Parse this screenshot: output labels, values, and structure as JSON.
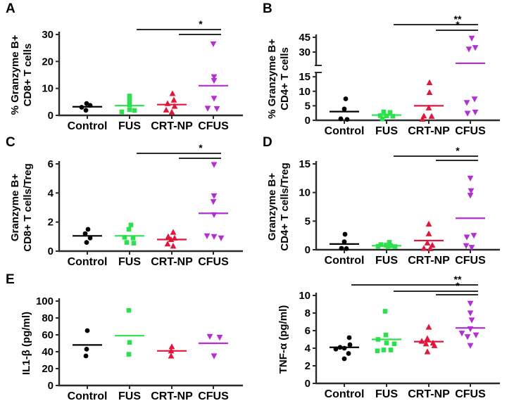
{
  "colors": {
    "control": "#000000",
    "fus": "#2cdf4c",
    "crtnp": "#e0173a",
    "cfus": "#b32fd4",
    "axis": "#2b2b2b",
    "sig": "#2a2a2a"
  },
  "chart_data": [
    {
      "type": "scatter",
      "panel_letter": "A",
      "ylabel_lines": [
        "% Granzyme B+",
        "CD8+ T cells"
      ],
      "categories": [
        "Control",
        "FUS",
        "CRT-NP",
        "CFUS"
      ],
      "ylim": [
        0,
        30
      ],
      "yticks": [
        0,
        10,
        20,
        30
      ],
      "axis_break": null,
      "series": [
        {
          "name": "Control",
          "marker": "circle",
          "color_key": "control",
          "mean": 3.2,
          "points": [
            [
              4.4,
              -1
            ],
            [
              3.7,
              4
            ],
            [
              3.0,
              -8
            ],
            [
              1.9,
              -2
            ]
          ]
        },
        {
          "name": "FUS",
          "marker": "square",
          "color_key": "fus",
          "mean": 3.6,
          "points": [
            [
              7.2,
              0
            ],
            [
              5.5,
              0
            ],
            [
              3.9,
              0
            ],
            [
              2.1,
              0
            ],
            [
              1.8,
              7
            ],
            [
              1.3,
              -11
            ]
          ]
        },
        {
          "name": "CRT-NP",
          "marker": "triangle-up",
          "color_key": "crtnp",
          "mean": 4.0,
          "points": [
            [
              8.1,
              1
            ],
            [
              5.7,
              3
            ],
            [
              4.4,
              -6
            ],
            [
              3.4,
              4
            ],
            [
              2.0,
              -8
            ],
            [
              1.2,
              0
            ]
          ]
        },
        {
          "name": "CFUS",
          "marker": "triangle-down",
          "color_key": "cfus",
          "mean": 11.0,
          "points": [
            [
              26.5,
              0
            ],
            [
              14.3,
              1
            ],
            [
              12.9,
              1
            ],
            [
              6.3,
              1
            ],
            [
              2.6,
              -8
            ],
            [
              2.5,
              5
            ]
          ]
        }
      ],
      "significance": [
        {
          "from": 1,
          "to": 3,
          "label": "*"
        },
        {
          "from": 2,
          "to": 3,
          "label": ""
        }
      ]
    },
    {
      "type": "scatter",
      "panel_letter": "B",
      "ylabel_lines": [
        "% Granzyme B+",
        "CD4+  T cells"
      ],
      "categories": [
        "Control",
        "FUS",
        "CRT-NP",
        "CFUS"
      ],
      "ylim": [
        0,
        45
      ],
      "yticks": [],
      "axis_break": {
        "lower_max": 16,
        "upper_min": 20,
        "upper_max": 45,
        "lower_ticks": [
          0,
          5,
          10,
          15
        ],
        "upper_ticks": [
          30,
          45
        ]
      },
      "series": [
        {
          "name": "Control",
          "marker": "circle",
          "color_key": "control",
          "mean": 3.0,
          "points": [
            [
              7.4,
              2
            ],
            [
              3.9,
              0
            ],
            [
              0.5,
              -5
            ],
            [
              0.3,
              4
            ]
          ]
        },
        {
          "name": "FUS",
          "marker": "square",
          "color_key": "fus",
          "mean": 1.8,
          "points": [
            [
              2.9,
              -4
            ],
            [
              2.7,
              5
            ],
            [
              1.6,
              -9
            ],
            [
              1.5,
              0
            ],
            [
              1.4,
              9
            ],
            [
              0.5,
              -6
            ]
          ]
        },
        {
          "name": "CRT-NP",
          "marker": "triangle-up",
          "color_key": "crtnp",
          "mean": 5.0,
          "points": [
            [
              13.0,
              1
            ],
            [
              9.6,
              1
            ],
            [
              4.3,
              0
            ],
            [
              1.5,
              -7
            ],
            [
              1.4,
              4
            ],
            [
              0.4,
              -9
            ]
          ]
        },
        {
          "name": "CFUS",
          "marker": "triangle-down",
          "color_key": "cfus",
          "mean": 18.6,
          "points": [
            [
              44.0,
              2
            ],
            [
              34.5,
              7
            ],
            [
              33.0,
              -2
            ],
            [
              7.3,
              6
            ],
            [
              6.1,
              -5
            ],
            [
              2.8,
              7
            ],
            [
              2.4,
              -4
            ]
          ]
        }
      ],
      "significance": [
        {
          "from": 1,
          "to": 3,
          "label": "**"
        },
        {
          "from": 2,
          "to": 3,
          "label": "*"
        }
      ]
    },
    {
      "type": "scatter",
      "panel_letter": "C",
      "ylabel_lines": [
        "Granzyme B+",
        "CD8+ T cells/Treg"
      ],
      "categories": [
        "Control",
        "FUS",
        "CRT-NP",
        "CFUS"
      ],
      "ylim": [
        0,
        6
      ],
      "yticks": [
        0,
        2,
        4,
        6
      ],
      "axis_break": null,
      "series": [
        {
          "name": "Control",
          "marker": "circle",
          "color_key": "control",
          "mean": 1.05,
          "points": [
            [
              1.5,
              1
            ],
            [
              1.2,
              -3
            ],
            [
              0.9,
              4
            ],
            [
              0.6,
              -1
            ]
          ]
        },
        {
          "name": "FUS",
          "marker": "square",
          "color_key": "fus",
          "mean": 1.05,
          "points": [
            [
              1.8,
              2
            ],
            [
              1.5,
              -1
            ],
            [
              0.95,
              -7
            ],
            [
              0.9,
              5
            ],
            [
              0.6,
              -4
            ],
            [
              0.55,
              6
            ]
          ]
        },
        {
          "name": "CRT-NP",
          "marker": "triangle-up",
          "color_key": "crtnp",
          "mean": 0.8,
          "points": [
            [
              1.3,
              2
            ],
            [
              1.0,
              -5
            ],
            [
              0.9,
              4
            ],
            [
              0.8,
              -1
            ],
            [
              0.5,
              -6
            ],
            [
              0.35,
              2
            ]
          ]
        },
        {
          "name": "CFUS",
          "marker": "triangle-down",
          "color_key": "cfus",
          "mean": 2.6,
          "points": [
            [
              5.95,
              1
            ],
            [
              3.8,
              1
            ],
            [
              3.4,
              0
            ],
            [
              2.5,
              1
            ],
            [
              1.05,
              -9
            ],
            [
              1.0,
              1
            ],
            [
              0.9,
              11
            ]
          ]
        }
      ],
      "significance": [
        {
          "from": 1,
          "to": 3,
          "label": "*"
        },
        {
          "from": 2,
          "to": 3,
          "label": ""
        }
      ]
    },
    {
      "type": "scatter",
      "panel_letter": "D",
      "ylabel_lines": [
        "Granzyme B+",
        "CD4+ T cells/Treg"
      ],
      "categories": [
        "Control",
        "FUS",
        "CRT-NP",
        "CFUS"
      ],
      "ylim": [
        0,
        15
      ],
      "yticks": [
        0,
        5,
        10,
        15
      ],
      "axis_break": null,
      "series": [
        {
          "name": "Control",
          "marker": "circle",
          "color_key": "control",
          "mean": 1.0,
          "points": [
            [
              2.7,
              1
            ],
            [
              1.4,
              0
            ],
            [
              0.25,
              -4
            ],
            [
              0.2,
              3
            ]
          ]
        },
        {
          "name": "FUS",
          "marker": "square",
          "color_key": "fus",
          "mean": 0.7,
          "points": [
            [
              1.3,
              4
            ],
            [
              0.9,
              -8
            ],
            [
              0.8,
              -1
            ],
            [
              0.7,
              6
            ],
            [
              0.6,
              -12
            ],
            [
              0.55,
              12
            ],
            [
              0.5,
              2
            ]
          ]
        },
        {
          "name": "CRT-NP",
          "marker": "triangle-up",
          "color_key": "crtnp",
          "mean": 1.6,
          "points": [
            [
              4.5,
              0
            ],
            [
              2.8,
              0
            ],
            [
              1.2,
              -2
            ],
            [
              0.8,
              5
            ],
            [
              0.25,
              -7
            ],
            [
              0.2,
              2
            ]
          ]
        },
        {
          "name": "CFUS",
          "marker": "triangle-down",
          "color_key": "cfus",
          "mean": 5.5,
          "points": [
            [
              12.5,
              0
            ],
            [
              10.3,
              1
            ],
            [
              9.5,
              0
            ],
            [
              2.5,
              5
            ],
            [
              2.2,
              -5
            ],
            [
              0.7,
              -6
            ],
            [
              0.4,
              2
            ]
          ]
        }
      ],
      "significance": [
        {
          "from": 1,
          "to": 3,
          "label": "*"
        },
        {
          "from": 2,
          "to": 3,
          "label": ""
        }
      ]
    },
    {
      "type": "scatter",
      "panel_letter": "E",
      "ylabel_lines": [
        "IL1-β (pg/ml)"
      ],
      "categories": [
        "Control",
        "FUS",
        "CRT-NP",
        "CFUS"
      ],
      "ylim": [
        0,
        100
      ],
      "yticks": [
        0,
        20,
        40,
        60,
        80,
        100
      ],
      "axis_break": null,
      "series": [
        {
          "name": "Control",
          "marker": "circle",
          "color_key": "control",
          "mean": 48,
          "points": [
            [
              65,
              0
            ],
            [
              43,
              -1
            ],
            [
              35,
              -2
            ]
          ]
        },
        {
          "name": "FUS",
          "marker": "square",
          "color_key": "fus",
          "mean": 59,
          "points": [
            [
              89,
              -1
            ],
            [
              51,
              0
            ],
            [
              37,
              -1
            ]
          ]
        },
        {
          "name": "CRT-NP",
          "marker": "triangle-up",
          "color_key": "crtnp",
          "mean": 41,
          "points": [
            [
              46,
              0
            ],
            [
              41,
              -1
            ],
            [
              35,
              -1
            ]
          ]
        },
        {
          "name": "CFUS",
          "marker": "triangle-down",
          "color_key": "cfus",
          "mean": 50,
          "points": [
            [
              58,
              -5
            ],
            [
              57,
              9
            ],
            [
              35,
              1
            ]
          ]
        }
      ],
      "significance": []
    },
    {
      "type": "scatter",
      "panel_letter": "",
      "ylabel_lines": [
        "TNF-α (pg/ml)"
      ],
      "categories": [
        "Control",
        "FUS",
        "CRT-NP",
        "CFUS"
      ],
      "ylim": [
        0,
        10
      ],
      "yticks": [
        0,
        2,
        4,
        6,
        8,
        10
      ],
      "axis_break": null,
      "series": [
        {
          "name": "Control",
          "marker": "circle",
          "color_key": "control",
          "mean": 4.1,
          "points": [
            [
              5.2,
              7
            ],
            [
              4.4,
              8
            ],
            [
              4.1,
              -6
            ],
            [
              4.0,
              0
            ],
            [
              3.9,
              -12
            ],
            [
              3.4,
              6
            ],
            [
              2.8,
              0
            ]
          ]
        },
        {
          "name": "FUS",
          "marker": "square",
          "color_key": "fus",
          "mean": 5.0,
          "points": [
            [
              8.2,
              -2
            ],
            [
              5.5,
              -1
            ],
            [
              5.0,
              -12
            ],
            [
              4.6,
              0
            ],
            [
              4.5,
              11
            ],
            [
              3.8,
              -4
            ],
            [
              3.8,
              6
            ],
            [
              3.7,
              -13
            ]
          ]
        },
        {
          "name": "CRT-NP",
          "marker": "triangle-up",
          "color_key": "crtnp",
          "mean": 4.75,
          "points": [
            [
              6.4,
              0
            ],
            [
              5.1,
              -2
            ],
            [
              4.8,
              -10
            ],
            [
              4.6,
              6
            ],
            [
              4.5,
              -4
            ],
            [
              4.3,
              8
            ],
            [
              3.6,
              -2
            ]
          ]
        },
        {
          "name": "CFUS",
          "marker": "triangle-down",
          "color_key": "cfus",
          "mean": 6.3,
          "points": [
            [
              9.1,
              0
            ],
            [
              8.0,
              0
            ],
            [
              7.2,
              2
            ],
            [
              6.2,
              0
            ],
            [
              5.7,
              -12
            ],
            [
              5.5,
              8
            ],
            [
              5.3,
              -4
            ],
            [
              4.3,
              0
            ]
          ]
        }
      ],
      "significance": [
        {
          "from": 0,
          "to": 3,
          "label": "**"
        },
        {
          "from": 1,
          "to": 3,
          "label": "*"
        },
        {
          "from": 2,
          "to": 3,
          "label": ""
        }
      ]
    }
  ]
}
